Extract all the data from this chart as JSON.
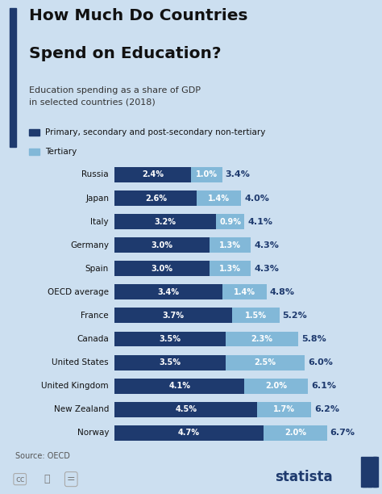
{
  "title_line1": "How Much Do Countries",
  "title_line2": "Spend on Education?",
  "subtitle": "Education spending as a share of GDP\nin selected countries (2018)",
  "countries": [
    "Norway",
    "New Zealand",
    "United Kingdom",
    "United States",
    "Canada",
    "France",
    "OECD average",
    "Spain",
    "Germany",
    "Italy",
    "Japan",
    "Russia"
  ],
  "primary": [
    4.7,
    4.5,
    4.1,
    3.5,
    3.5,
    3.7,
    3.4,
    3.0,
    3.0,
    3.2,
    2.6,
    2.4
  ],
  "tertiary": [
    2.0,
    1.7,
    2.0,
    2.5,
    2.3,
    1.5,
    1.4,
    1.3,
    1.3,
    0.9,
    1.4,
    1.0
  ],
  "total": [
    6.7,
    6.2,
    6.1,
    6.0,
    5.8,
    5.2,
    4.8,
    4.3,
    4.3,
    4.1,
    4.0,
    3.4
  ],
  "primary_color": "#1e3a6e",
  "tertiary_color": "#82b8d8",
  "bg_color": "#ccdff0",
  "title_color": "#111111",
  "source_text": "Source: OECD",
  "legend_primary": "Primary, secondary and post-secondary non-tertiary",
  "legend_tertiary": "Tertiary",
  "statista_color": "#1e3a6e",
  "accent_bar_color": "#1e3a6e"
}
